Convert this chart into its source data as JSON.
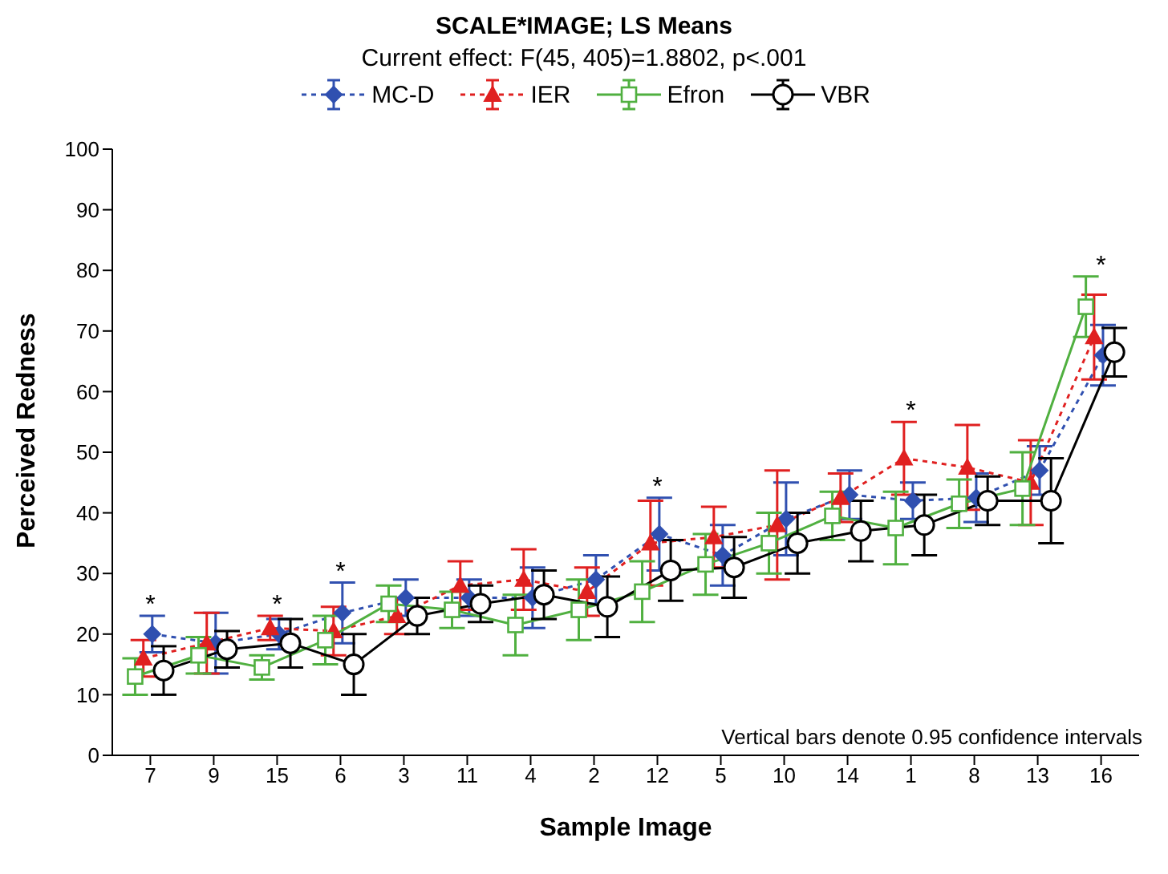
{
  "chart_data": {
    "type": "line",
    "title": "SCALE*IMAGE; LS Means",
    "subtitle": "Current effect: F(45, 405)=1.8802, p<.001",
    "xlabel": "Sample Image",
    "ylabel": "Perceived Redness",
    "categories": [
      "7",
      "9",
      "15",
      "6",
      "3",
      "11",
      "4",
      "2",
      "12",
      "5",
      "10",
      "14",
      "1",
      "8",
      "13",
      "16"
    ],
    "series": [
      {
        "name": "MC-D",
        "color": "#3050b0",
        "marker": "diamond",
        "line_style": "dotted",
        "values": [
          20,
          18.5,
          20,
          23.5,
          26,
          26,
          26,
          29,
          36.5,
          33,
          39,
          43,
          42,
          42.5,
          47,
          66
        ],
        "errors": [
          3,
          5,
          2.5,
          5,
          3,
          3,
          5,
          4,
          6,
          5,
          6,
          4,
          3,
          4,
          4,
          5
        ]
      },
      {
        "name": "IER",
        "color": "#e02020",
        "marker": "triangle",
        "line_style": "dotted",
        "values": [
          16,
          18.5,
          21,
          20.5,
          23,
          28,
          29,
          27,
          35,
          36,
          38,
          42.5,
          49,
          47.5,
          45,
          69
        ],
        "errors": [
          3,
          5,
          2,
          4,
          3,
          4,
          5,
          4,
          7,
          5,
          9,
          4,
          6,
          7,
          7,
          7
        ]
      },
      {
        "name": "Efron",
        "color": "#50b040",
        "marker": "square",
        "line_style": "solid",
        "values": [
          13,
          16.5,
          14.5,
          19,
          25,
          24,
          21.5,
          24,
          27,
          31.5,
          35,
          39.5,
          37.5,
          41.5,
          44,
          74
        ],
        "errors": [
          3,
          3,
          2,
          4,
          3,
          3,
          5,
          5,
          5,
          5,
          5,
          4,
          6,
          4,
          6,
          5
        ]
      },
      {
        "name": "VBR",
        "color": "#000000",
        "marker": "circle",
        "line_style": "solid",
        "values": [
          14,
          17.5,
          18.5,
          15,
          23,
          25,
          26.5,
          24.5,
          30.5,
          31,
          35,
          37,
          38,
          42,
          42,
          66.5
        ],
        "errors": [
          4,
          3,
          4,
          5,
          3,
          3,
          4,
          5,
          5,
          5,
          5,
          5,
          5,
          4,
          7,
          4
        ]
      }
    ],
    "ylim": [
      0,
      100
    ],
    "yticks": [
      0,
      10,
      20,
      30,
      40,
      50,
      60,
      70,
      80,
      90,
      100
    ],
    "grid": false,
    "legend": "top",
    "annotations": [
      {
        "text": "*",
        "x": "7",
        "y": 23
      },
      {
        "text": "*",
        "x": "15",
        "y": 23
      },
      {
        "text": "*",
        "x": "6",
        "y": 28.5
      },
      {
        "text": "*",
        "x": "12",
        "y": 42.5
      },
      {
        "text": "*",
        "x": "1",
        "y": 55
      },
      {
        "text": "*",
        "x": "16",
        "y": 79
      },
      "Vertical bars denote 0.95 confidence intervals"
    ]
  }
}
